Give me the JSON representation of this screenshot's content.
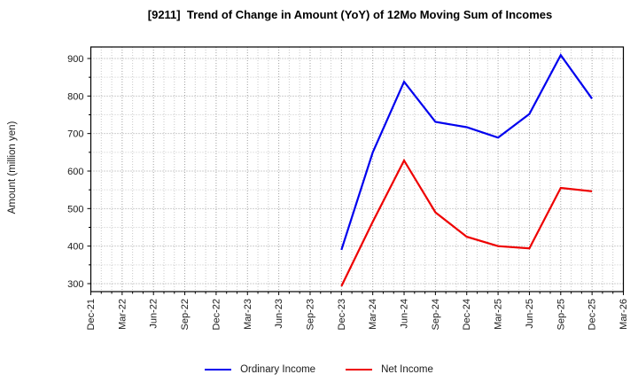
{
  "title": "[9211]  Trend of Change in Amount (YoY) of 12Mo Moving Sum of Incomes",
  "chart_data": {
    "type": "line",
    "title": "[9211]  Trend of Change in Amount (YoY) of 12Mo Moving Sum of Incomes",
    "xlabel": "",
    "ylabel": "Amount (million yen)",
    "categories": [
      "Dec-21",
      "Mar-22",
      "Jun-22",
      "Sep-22",
      "Dec-22",
      "Mar-23",
      "Jun-23",
      "Sep-23",
      "Dec-23",
      "Mar-24",
      "Jun-24",
      "Sep-24",
      "Dec-24",
      "Mar-25",
      "Jun-25",
      "Sep-25",
      "Dec-25",
      "Mar-26"
    ],
    "series": [
      {
        "name": "Ordinary Income",
        "color": "#0000ee",
        "values": [
          null,
          null,
          null,
          null,
          null,
          null,
          null,
          null,
          390,
          650,
          838,
          731,
          717,
          689,
          752,
          909,
          793,
          null
        ]
      },
      {
        "name": "Net Income",
        "color": "#ee0000",
        "values": [
          null,
          null,
          null,
          null,
          null,
          null,
          null,
          null,
          293,
          465,
          628,
          490,
          425,
          400,
          394,
          555,
          546,
          null
        ]
      }
    ],
    "ylim": [
      278.7,
      930.7
    ],
    "yticks": [
      300,
      400,
      500,
      600,
      700,
      800,
      900
    ],
    "minor_ytick_step": 50,
    "minor_xticks_per_quarter": 3,
    "grid": "dotted",
    "legend_position": "bottom"
  },
  "colors": {
    "grid_major": "#a0a0a0",
    "grid_minor": "#c9c9c9",
    "spine": "#000000",
    "tick_text": "#1a1a1a",
    "background": "#ffffff"
  }
}
